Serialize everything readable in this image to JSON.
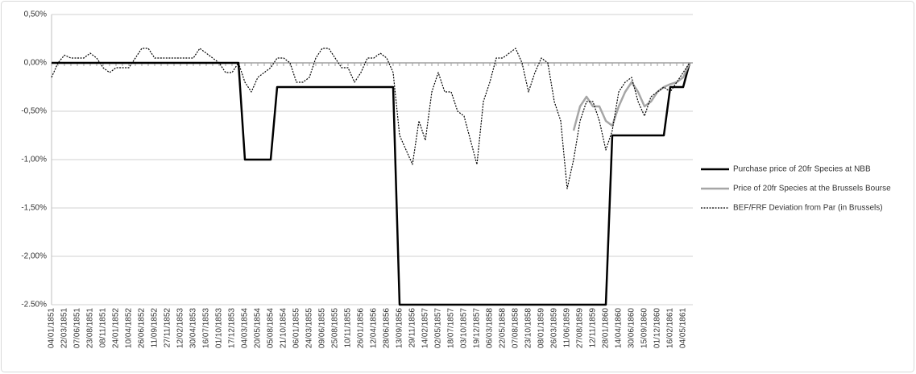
{
  "chart_data": {
    "type": "line",
    "categories": [
      "04/01/1851",
      null,
      "22/03/1851",
      null,
      "07/06/1851",
      null,
      "23/08/1851",
      null,
      "08/11/1851",
      null,
      "24/01/1852",
      null,
      "10/04/1852",
      null,
      "26/06/1852",
      null,
      "11/09/1852",
      null,
      "27/11/1852",
      null,
      "12/02/1853",
      null,
      "30/04/1853",
      null,
      "16/07/1853",
      null,
      "01/10/1853",
      null,
      "17/12/1853",
      null,
      "04/03/1854",
      null,
      "20/05/1854",
      null,
      "05/08/1854",
      null,
      "21/10/1854",
      null,
      "06/01/1855",
      null,
      "24/03/1855",
      null,
      "09/06/1855",
      null,
      "25/08/1855",
      null,
      "10/11/1855",
      null,
      "26/01/1856",
      null,
      "12/04/1856",
      null,
      "28/06/1856",
      null,
      "13/09/1856",
      null,
      "29/11/1856",
      null,
      "14/02/1857",
      null,
      "02/05/1857",
      null,
      "18/07/1857",
      null,
      "03/10/1857",
      null,
      "19/12/1857",
      null,
      "06/03/1858",
      null,
      "22/05/1858",
      null,
      "07/08/1858",
      null,
      "23/10/1858",
      null,
      "08/01/1859",
      null,
      "26/03/1859",
      null,
      "11/06/1859",
      null,
      "27/08/1859",
      null,
      "12/11/1859",
      null,
      "28/01/1860",
      null,
      "14/04/1860",
      null,
      "30/06/1860",
      null,
      "15/09/1860",
      null,
      "01/12/1860",
      null,
      "16/02/1861",
      null,
      "04/05/1861",
      null
    ],
    "series": [
      {
        "name": "Purchase price of 20fr Species at NBB",
        "color": "#000000",
        "style": "solid",
        "width": 2.5,
        "values": [
          0,
          0,
          0,
          0,
          0,
          0,
          0,
          0,
          0,
          0,
          0,
          0,
          0,
          0,
          0,
          0,
          0,
          0,
          0,
          0,
          0,
          0,
          0,
          0,
          0,
          0,
          0,
          0,
          0,
          0,
          -1,
          -1,
          -1,
          -1,
          -1,
          -0.25,
          -0.25,
          -0.25,
          -0.25,
          -0.25,
          -0.25,
          -0.25,
          -0.25,
          -0.25,
          -0.25,
          -0.25,
          -0.25,
          -0.25,
          -0.25,
          -0.25,
          -0.25,
          -0.25,
          -0.25,
          -0.25,
          -2.5,
          -2.5,
          -2.5,
          -2.5,
          -2.5,
          -2.5,
          -2.5,
          -2.5,
          -2.5,
          -2.5,
          -2.5,
          -2.5,
          -2.5,
          -2.5,
          -2.5,
          -2.5,
          -2.5,
          -2.5,
          -2.5,
          -2.5,
          -2.5,
          -2.5,
          -2.5,
          -2.5,
          -2.5,
          -2.5,
          -2.5,
          -2.5,
          -2.5,
          -2.5,
          -2.5,
          -2.5,
          -2.5,
          -0.75,
          -0.75,
          -0.75,
          -0.75,
          -0.75,
          -0.75,
          -0.75,
          -0.75,
          -0.75,
          -0.25,
          -0.25,
          -0.25,
          0
        ]
      },
      {
        "name": "Price of 20fr Species at the  Brussels Bourse",
        "color": "#a6a6a6",
        "style": "solid",
        "width": 2.5,
        "values": [
          null,
          null,
          null,
          null,
          null,
          null,
          null,
          null,
          null,
          null,
          null,
          null,
          null,
          null,
          null,
          null,
          null,
          null,
          null,
          null,
          null,
          null,
          null,
          null,
          null,
          null,
          null,
          null,
          null,
          null,
          null,
          null,
          null,
          null,
          null,
          null,
          null,
          null,
          null,
          null,
          null,
          null,
          null,
          null,
          null,
          null,
          null,
          null,
          null,
          null,
          null,
          null,
          null,
          null,
          null,
          null,
          null,
          null,
          null,
          null,
          null,
          null,
          null,
          null,
          null,
          null,
          null,
          null,
          null,
          null,
          null,
          null,
          null,
          null,
          null,
          null,
          null,
          null,
          null,
          null,
          null,
          -0.7,
          -0.45,
          -0.35,
          -0.45,
          -0.45,
          -0.6,
          -0.65,
          -0.45,
          -0.3,
          -0.2,
          -0.3,
          -0.45,
          -0.4,
          -0.3,
          -0.25,
          -0.22,
          -0.2,
          -0.15,
          0
        ]
      },
      {
        "name": "BEF/FRF Deviation from Par (in Brussels)",
        "color": "#000000",
        "style": "dotted",
        "width": 1.2,
        "values": [
          -0.15,
          0,
          0.08,
          0.05,
          0.05,
          0.05,
          0.1,
          0.05,
          -0.05,
          -0.1,
          -0.05,
          -0.05,
          -0.05,
          0.05,
          0.15,
          0.15,
          0.05,
          0.05,
          0.05,
          0.05,
          0.05,
          0.05,
          0.05,
          0.15,
          0.1,
          0.05,
          0,
          -0.1,
          -0.1,
          0,
          -0.2,
          -0.3,
          -0.15,
          -0.1,
          -0.05,
          0.05,
          0.05,
          0,
          -0.2,
          -0.2,
          -0.15,
          0.05,
          0.15,
          0.15,
          0.05,
          -0.05,
          -0.05,
          -0.2,
          -0.1,
          0.05,
          0.05,
          0.1,
          0.05,
          -0.1,
          -0.75,
          -0.9,
          -1.05,
          -0.6,
          -0.8,
          -0.3,
          -0.1,
          -0.3,
          -0.3,
          -0.5,
          -0.55,
          -0.8,
          -1.05,
          -0.4,
          -0.2,
          0.05,
          0.05,
          0.1,
          0.15,
          0,
          -0.3,
          -0.1,
          0.05,
          0,
          -0.4,
          -0.6,
          -1.3,
          -1,
          -0.6,
          -0.4,
          -0.4,
          -0.6,
          -0.9,
          -0.7,
          -0.3,
          -0.2,
          -0.15,
          -0.4,
          -0.55,
          -0.35,
          -0.3,
          -0.25,
          -0.3,
          -0.2,
          -0.1,
          0
        ]
      }
    ],
    "ylim": [
      -2.5,
      0.5
    ],
    "yticks": [
      {
        "value": 0.5,
        "label": "0,50%"
      },
      {
        "value": 0,
        "label": "0,00%"
      },
      {
        "value": -0.5,
        "label": "-0,50%"
      },
      {
        "value": -1,
        "label": "-1,00%"
      },
      {
        "value": -1.5,
        "label": "-1,50%"
      },
      {
        "value": -2,
        "label": "-2,00%"
      },
      {
        "value": -2.5,
        "label": "-2.50%"
      }
    ],
    "grid": true,
    "legend": "right"
  }
}
